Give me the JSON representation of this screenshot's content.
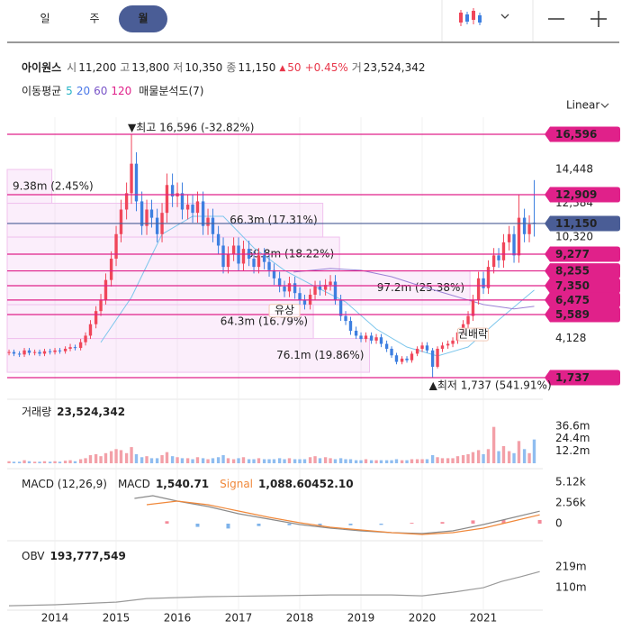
{
  "header": {
    "tabs": [
      "일",
      "주",
      "월"
    ],
    "active_tab": 2,
    "active_color": "#4a5d96",
    "name": "아이원스",
    "quote": [
      {
        "label": "시",
        "value": "11,200"
      },
      {
        "label": "고",
        "value": "13,800"
      },
      {
        "label": "저",
        "value": "10,350"
      },
      {
        "label": "종",
        "value": "11,150"
      }
    ],
    "change_arrow": "▲",
    "change": "50",
    "change_pct": "+0.45%",
    "change_color": "#e8374a",
    "volume_label": "거",
    "volume": "23,524,342",
    "indicators": {
      "label": "이동평균",
      "periods": [
        {
          "label": "5",
          "color": "#27b4c6"
        },
        {
          "label": "20",
          "color": "#4a78e8"
        },
        {
          "label": "60",
          "color": "#7a55c8"
        },
        {
          "label": "120",
          "color": "#e0218a"
        }
      ],
      "profile": "매물분석도(7)"
    },
    "scale_label": "Linear"
  },
  "chart_data": [
    {
      "type": "candlestick",
      "x": [
        2013.25,
        2013.33,
        2013.42,
        2013.5,
        2013.58,
        2013.67,
        2013.75,
        2013.83,
        2013.92,
        2014,
        2014.08,
        2014.17,
        2014.25,
        2014.33,
        2014.42,
        2014.5,
        2014.58,
        2014.67,
        2014.75,
        2014.83,
        2014.92,
        2015,
        2015.08,
        2015.17,
        2015.25,
        2015.33,
        2015.42,
        2015.5,
        2015.58,
        2015.67,
        2015.75,
        2015.83,
        2015.92,
        2016,
        2016.08,
        2016.17,
        2016.25,
        2016.33,
        2016.42,
        2016.5,
        2016.58,
        2016.67,
        2016.75,
        2016.83,
        2016.92,
        2017,
        2017.08,
        2017.17,
        2017.25,
        2017.33,
        2017.42,
        2017.5,
        2017.58,
        2017.67,
        2017.75,
        2017.83,
        2017.92,
        2018,
        2018.08,
        2018.17,
        2018.25,
        2018.33,
        2018.42,
        2018.5,
        2018.58,
        2018.67,
        2018.75,
        2018.83,
        2018.92,
        2019,
        2019.08,
        2019.17,
        2019.25,
        2019.33,
        2019.42,
        2019.5,
        2019.58,
        2019.67,
        2019.75,
        2019.83,
        2019.92,
        2020,
        2020.08,
        2020.17,
        2020.25,
        2020.33,
        2020.42,
        2020.5,
        2020.58,
        2020.67,
        2020.75,
        2020.83,
        2020.92,
        2021,
        2021.08,
        2021.17,
        2021.25,
        2021.33,
        2021.42,
        2021.5,
        2021.58,
        2021.67,
        2021.75,
        2021.83
      ],
      "open": [
        3250,
        3300,
        3200,
        3150,
        3400,
        3250,
        3300,
        3200,
        3350,
        3300,
        3400,
        3350,
        3500,
        3600,
        3550,
        3900,
        4300,
        5000,
        5800,
        6500,
        7700,
        9000,
        10500,
        12000,
        13000,
        14800,
        12500,
        11000,
        12000,
        11500,
        10500,
        11800,
        13500,
        12800,
        13000,
        12000,
        12300,
        11800,
        12500,
        11000,
        11500,
        10500,
        9800,
        8500,
        9300,
        9800,
        8700,
        9600,
        9000,
        8500,
        9200,
        8800,
        8300,
        7800,
        7300,
        7000,
        7500,
        6900,
        6500,
        6200,
        6800,
        7300,
        7100,
        7400,
        7600,
        6500,
        5500,
        5200,
        4600,
        4300,
        4100,
        4300,
        4000,
        4200,
        3800,
        3500,
        3100,
        2700,
        2900,
        2800,
        3200,
        3500,
        3700,
        3400,
        2400,
        3500,
        3700,
        3800,
        4000,
        4500,
        5000,
        5500,
        6500,
        7800,
        7200,
        8500,
        9200,
        8900,
        10000,
        10500,
        9200,
        11500,
        10500,
        11200
      ],
      "high": [
        3450,
        3450,
        3350,
        3550,
        3550,
        3450,
        3450,
        3500,
        3500,
        3550,
        3550,
        3650,
        3800,
        3750,
        4100,
        4500,
        5250,
        6100,
        6850,
        8100,
        9450,
        11000,
        12600,
        13650,
        16596,
        15500,
        13100,
        12600,
        12600,
        12050,
        12400,
        14200,
        14200,
        13650,
        13650,
        12900,
        12900,
        13100,
        13100,
        12050,
        12050,
        11000,
        10300,
        9750,
        10300,
        10300,
        10100,
        10100,
        9450,
        9650,
        9650,
        9250,
        8700,
        8200,
        7650,
        7900,
        7900,
        7250,
        6800,
        7150,
        7650,
        7650,
        7750,
        8000,
        8000,
        6800,
        5800,
        5450,
        4850,
        4500,
        4500,
        4500,
        4400,
        4400,
        4000,
        3650,
        3250,
        3050,
        3050,
        3350,
        3650,
        3900,
        3900,
        3550,
        3650,
        3900,
        4000,
        4200,
        4700,
        5250,
        5800,
        6800,
        8200,
        8200,
        8900,
        9650,
        9650,
        10500,
        11000,
        11000,
        12909,
        12050,
        11650,
        13800
      ],
      "low": [
        3100,
        3050,
        3000,
        3000,
        3100,
        3100,
        3050,
        3050,
        3150,
        3150,
        3200,
        3200,
        3350,
        3400,
        3400,
        3700,
        4100,
        4750,
        5500,
        6200,
        7300,
        8550,
        10000,
        11400,
        12350,
        11900,
        10450,
        10450,
        10900,
        10000,
        10000,
        11200,
        12150,
        12150,
        11400,
        11400,
        11200,
        11200,
        10450,
        10450,
        10000,
        9300,
        8100,
        8100,
        8850,
        8250,
        8250,
        8550,
        8100,
        8100,
        8350,
        7900,
        7400,
        6950,
        6650,
        6650,
        6550,
        6200,
        5900,
        5900,
        6450,
        6750,
        6750,
        7050,
        6200,
        5200,
        4950,
        4350,
        4100,
        3900,
        3900,
        3800,
        3800,
        3600,
        3300,
        2950,
        2550,
        2550,
        2650,
        2650,
        3050,
        3300,
        3250,
        1737,
        2300,
        3300,
        3500,
        3600,
        3800,
        4300,
        4750,
        5200,
        6200,
        6850,
        6850,
        8100,
        8450,
        8450,
        9500,
        8750,
        8750,
        10000,
        10000,
        10350
      ],
      "close": [
        3300,
        3200,
        3150,
        3400,
        3250,
        3300,
        3200,
        3350,
        3300,
        3400,
        3350,
        3500,
        3600,
        3550,
        3900,
        4300,
        5000,
        5800,
        6500,
        7700,
        9000,
        10500,
        12000,
        13000,
        14800,
        12500,
        11000,
        12000,
        11500,
        10500,
        11800,
        13500,
        12800,
        13000,
        12000,
        12300,
        11800,
        12500,
        11000,
        11500,
        10500,
        9800,
        8500,
        9300,
        9800,
        8700,
        9600,
        9000,
        8500,
        9200,
        8800,
        8300,
        7800,
        7300,
        7000,
        7500,
        6900,
        6500,
        6200,
        6800,
        7300,
        7100,
        7400,
        7600,
        6500,
        5500,
        5200,
        4600,
        4300,
        4100,
        4300,
        4000,
        4200,
        3800,
        3500,
        3100,
        2700,
        2900,
        2800,
        3200,
        3500,
        3700,
        3400,
        2400,
        3500,
        3700,
        3800,
        4000,
        4500,
        5000,
        5500,
        6500,
        7800,
        7200,
        8500,
        9200,
        8900,
        10000,
        10500,
        9200,
        11500,
        10500,
        11100,
        11150
      ],
      "up_color": "#f0465a",
      "down_color": "#3d7fe0",
      "ylim": [
        582,
        17641
      ],
      "yticks": [
        {
          "value": 4128,
          "label": "4,128"
        },
        {
          "value": 10320,
          "label": "10,320"
        },
        {
          "value": 12384,
          "label": "12,384"
        },
        {
          "value": 14448,
          "label": "14,448"
        }
      ],
      "level_color": "#e0218a",
      "price_levels": [
        {
          "value": 16596,
          "label": "16,596"
        },
        {
          "value": 12909,
          "label": "12,909"
        },
        {
          "value": 9277,
          "label": "9,277"
        },
        {
          "value": 8255,
          "label": "8,255"
        },
        {
          "value": 7350,
          "label": "7,350"
        },
        {
          "value": 6475,
          "label": "6,475"
        },
        {
          "value": 5589,
          "label": "5,589"
        },
        {
          "value": 1737,
          "label": "1,737"
        }
      ],
      "current_price": {
        "value": 11150,
        "label": "11,150",
        "color": "#4a5d96"
      },
      "high_annotation": {
        "x": 2015.25,
        "value": 16596,
        "label": "▼최고 16,596 (-32.82%)"
      },
      "low_annotation": {
        "x": 2020.17,
        "value": 1737,
        "label": "▲최저 1,737 (541.91%)"
      },
      "annotation_color": "#5b7fc0",
      "volume_profile": {
        "xlim": [
          0,
          112500000
        ],
        "fill": "rgba(236,176,236,0.22)",
        "stroke": "#f0c2ee",
        "bands": [
          {
            "low": 12384,
            "high": 14448,
            "volume": 9380000,
            "label": "9.38m (2.45%)"
          },
          {
            "low": 10320,
            "high": 12384,
            "volume": 66300000,
            "label": "66.3m (17.31%)"
          },
          {
            "low": 8256,
            "high": 10320,
            "volume": 69800000,
            "label": "69.8m (18.22%)"
          },
          {
            "low": 6192,
            "high": 8256,
            "volume": 97200000,
            "label": "97.2m (25.38%)"
          },
          {
            "low": 4128,
            "high": 6192,
            "volume": 64300000,
            "label": "64.3m (16.79%)"
          },
          {
            "low": 2064,
            "high": 4128,
            "volume": 76100000,
            "label": "76.1m (19.86%)"
          }
        ]
      },
      "events": [
        {
          "x": 2017.75,
          "label": "유상"
        },
        {
          "x": 2020.83,
          "label": "권배락"
        }
      ],
      "event_color": "#e07a50",
      "moving_averages": [
        {
          "color": "#7cc6ec",
          "x": [
            2014.75,
            2015.25,
            2015.75,
            2016.25,
            2016.75,
            2017.25,
            2017.75,
            2018.25,
            2018.75,
            2019.25,
            2019.75,
            2020.25,
            2020.75,
            2021.25,
            2021.83
          ],
          "values": [
            3890,
            6640,
            10490,
            11590,
            11590,
            9660,
            8290,
            7300,
            6360,
            4710,
            3610,
            3060,
            3610,
            5260,
            7080
          ]
        },
        {
          "color": "#9b82d6",
          "x": [
            2017.9,
            2018.5,
            2019,
            2019.5,
            2020,
            2020.5,
            2021,
            2021.5,
            2021.83
          ],
          "values": [
            8180,
            8400,
            8290,
            7900,
            7300,
            6750,
            6200,
            5930,
            6090
          ]
        }
      ]
    },
    {
      "type": "bar",
      "title": "거래량",
      "value_label": "23,524,342",
      "values": [
        2000000.0,
        1500000.0,
        1500000.0,
        3000000.0,
        2000000.0,
        1500000.0,
        1500000.0,
        2000000.0,
        1500000.0,
        2000000.0,
        1500000.0,
        2500000.0,
        3000000.0,
        2000000.0,
        4000000.0,
        5000000.0,
        8000000.0,
        9000000.0,
        7000000.0,
        10000000.0,
        12000000.0,
        14000000.0,
        13000000.0,
        10000000.0,
        16000000.0,
        9000000.0,
        6000000.0,
        7000000.0,
        5000000.0,
        5000000.0,
        8000000.0,
        11000000.0,
        7000000.0,
        6000000.0,
        5000000.0,
        5000000.0,
        4000000.0,
        6000000.0,
        5000000.0,
        4000000.0,
        5000000.0,
        6000000.0,
        8000000.0,
        5000000.0,
        4000000.0,
        5000000.0,
        6000000.0,
        4000000.0,
        4000000.0,
        5000000.0,
        4000000.0,
        4000000.0,
        4000000.0,
        5000000.0,
        4000000.0,
        5000000.0,
        4000000.0,
        4000000.0,
        4000000.0,
        6000000.0,
        7000000.0,
        5000000.0,
        6000000.0,
        5000000.0,
        4000000.0,
        5000000.0,
        4000000.0,
        4000000.0,
        3000000.0,
        3000000.0,
        4000000.0,
        3000000.0,
        3000000.0,
        3000000.0,
        3000000.0,
        3000000.0,
        4000000.0,
        3000000.0,
        3000000.0,
        4000000.0,
        4000000.0,
        4000000.0,
        4000000.0,
        8000000.0,
        6000000.0,
        5000000.0,
        5000000.0,
        5000000.0,
        7000000.0,
        8000000.0,
        9000000.0,
        11000000.0,
        13000000.0,
        9000000.0,
        14000000.0,
        36000000.0,
        12000000.0,
        17000000.0,
        12000000.0,
        10000000.0,
        22000000.0,
        14000000.0,
        10000000.0,
        23524342
      ],
      "up_color": "#f3a0a8",
      "down_color": "#8fbdf0",
      "ylim": [
        0,
        58900000
      ],
      "yticks": [
        {
          "value": 12200000,
          "label": "12.2m"
        },
        {
          "value": 24400000,
          "label": "24.4m"
        },
        {
          "value": 36600000,
          "label": "36.6m"
        }
      ]
    },
    {
      "type": "macd",
      "title": "MACD (12,26,9)",
      "series": [
        {
          "name": "MACD",
          "value_label": "1,540.71",
          "color": "#8a8a8a",
          "x": [
            2015.3,
            2015.6,
            2016,
            2016.5,
            2017,
            2017.5,
            2018,
            2018.5,
            2019,
            2019.5,
            2020,
            2020.5,
            2021,
            2021.5,
            2021.92
          ],
          "values": [
            3120,
            3450,
            2780,
            2110,
            1220,
            560,
            -110,
            -560,
            -890,
            -1110,
            -1220,
            -890,
            -110,
            780,
            1540.71
          ]
        },
        {
          "name": "Signal",
          "value_label": "1,088.60",
          "color": "#f0883a",
          "x": [
            2015.5,
            2016,
            2016.5,
            2017,
            2017.5,
            2018,
            2018.5,
            2019,
            2019.5,
            2020,
            2020.5,
            2021,
            2021.5,
            2021.92
          ],
          "values": [
            2340,
            2780,
            2340,
            1560,
            780,
            110,
            -450,
            -780,
            -1110,
            -1340,
            -1110,
            -560,
            330,
            1088.6
          ]
        }
      ],
      "histogram": {
        "value_label": "452.10",
        "up_color": "#f48a99",
        "down_color": "#7fb3ea",
        "x": [
          2015.83,
          2016.33,
          2016.83,
          2017.33,
          2017.83,
          2018.33,
          2018.83,
          2019.33,
          2019.83,
          2020.33,
          2020.83,
          2021.33,
          2021.92
        ],
        "values": [
          300,
          -400,
          -600,
          -300,
          -200,
          -300,
          -200,
          -150,
          100,
          200,
          400,
          500,
          452.1
        ]
      },
      "ylim": [
        -1558,
        6233
      ],
      "yticks": [
        0,
        {
          "value": 2560,
          "label": "2.56k"
        },
        {
          "value": 5120,
          "label": "5.12k"
        }
      ]
    },
    {
      "type": "line",
      "title": "OBV",
      "value_label": "193,777,549",
      "series": [
        {
          "color": "#9a9a9a",
          "x": [
            2013.25,
            2014,
            2015,
            2015.5,
            2016.5,
            2017.5,
            2018.5,
            2019.5,
            2020,
            2020.5,
            2021,
            2021.3,
            2021.6,
            2021.92
          ],
          "values": [
            14000000,
            19000000,
            33000000,
            52000000,
            62000000,
            66000000,
            71000000,
            71000000,
            66000000,
            85000000,
            109000000,
            142000000,
            166000000,
            193777549
          ]
        }
      ],
      "ylim": [
        0,
        332700000
      ],
      "yticks": [
        {
          "value": 110000000,
          "label": "110m"
        },
        {
          "value": 219000000,
          "label": "219m"
        }
      ],
      "xlim": [
        2013.22,
        2021.97
      ],
      "xticks": [
        2014,
        2015,
        2016,
        2017,
        2018,
        2019,
        2020,
        2021
      ],
      "xgrid": true
    }
  ]
}
